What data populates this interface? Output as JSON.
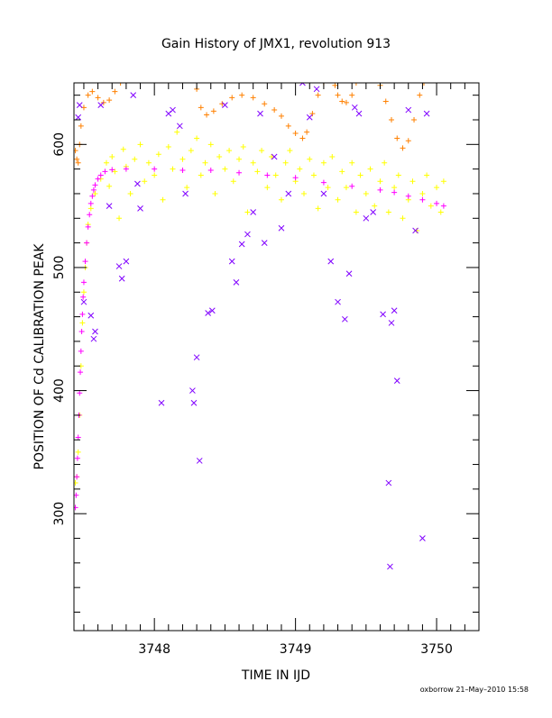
{
  "chart_data": {
    "type": "scatter",
    "title": "Gain History of JMX1, revolution 913",
    "xlabel": "TIME IN IJD",
    "ylabel": "POSITION OF Cd CALIBRATION PEAK",
    "footer": "oxborrow 21–May–2010 15:58",
    "xlim": [
      3747.43,
      3750.3
    ],
    "ylim": [
      205,
      650
    ],
    "x_tick_labels": [
      "3748",
      "3749",
      "3750"
    ],
    "y_tick_labels": [
      "300",
      "400",
      "500",
      "600"
    ],
    "x_major_ticks": [
      3748,
      3749,
      3750
    ],
    "y_major_ticks": [
      300,
      400,
      500,
      600
    ],
    "grid": false,
    "legend": "none",
    "series": [
      {
        "color": "#ffff00",
        "marker": "plus",
        "points": [
          [
            3747.44,
            325
          ],
          [
            3747.45,
            330
          ],
          [
            3747.46,
            350
          ],
          [
            3747.47,
            380
          ],
          [
            3747.48,
            420
          ],
          [
            3747.49,
            455
          ],
          [
            3747.5,
            480
          ],
          [
            3747.51,
            500
          ],
          [
            3747.52,
            520
          ],
          [
            3747.53,
            535
          ],
          [
            3747.55,
            548
          ],
          [
            3747.58,
            560
          ],
          [
            3747.62,
            572
          ],
          [
            3747.66,
            585
          ],
          [
            3747.68,
            566
          ],
          [
            3747.7,
            590
          ],
          [
            3747.72,
            578
          ],
          [
            3747.75,
            540
          ],
          [
            3747.78,
            596
          ],
          [
            3747.8,
            582
          ],
          [
            3747.83,
            560
          ],
          [
            3747.86,
            588
          ],
          [
            3747.9,
            600
          ],
          [
            3747.93,
            570
          ],
          [
            3747.96,
            585
          ],
          [
            3748.0,
            575
          ],
          [
            3748.03,
            592
          ],
          [
            3748.06,
            555
          ],
          [
            3748.1,
            598
          ],
          [
            3748.13,
            580
          ],
          [
            3748.16,
            610
          ],
          [
            3748.2,
            588
          ],
          [
            3748.23,
            565
          ],
          [
            3748.26,
            595
          ],
          [
            3748.3,
            605
          ],
          [
            3748.33,
            575
          ],
          [
            3748.36,
            585
          ],
          [
            3748.4,
            600
          ],
          [
            3748.43,
            560
          ],
          [
            3748.46,
            590
          ],
          [
            3748.5,
            580
          ],
          [
            3748.53,
            595
          ],
          [
            3748.56,
            570
          ],
          [
            3748.6,
            588
          ],
          [
            3748.63,
            598
          ],
          [
            3748.66,
            545
          ],
          [
            3748.7,
            585
          ],
          [
            3748.73,
            578
          ],
          [
            3748.76,
            595
          ],
          [
            3748.8,
            565
          ],
          [
            3748.83,
            590
          ],
          [
            3748.86,
            575
          ],
          [
            3748.9,
            555
          ],
          [
            3748.93,
            585
          ],
          [
            3748.96,
            595
          ],
          [
            3749.0,
            570
          ],
          [
            3749.03,
            580
          ],
          [
            3749.06,
            560
          ],
          [
            3749.1,
            588
          ],
          [
            3749.13,
            575
          ],
          [
            3749.16,
            548
          ],
          [
            3749.2,
            585
          ],
          [
            3749.23,
            565
          ],
          [
            3749.26,
            590
          ],
          [
            3749.3,
            555
          ],
          [
            3749.33,
            578
          ],
          [
            3749.36,
            565
          ],
          [
            3749.4,
            585
          ],
          [
            3749.43,
            545
          ],
          [
            3749.46,
            575
          ],
          [
            3749.5,
            560
          ],
          [
            3749.53,
            580
          ],
          [
            3749.56,
            550
          ],
          [
            3749.6,
            570
          ],
          [
            3749.63,
            585
          ],
          [
            3749.66,
            545
          ],
          [
            3749.7,
            565
          ],
          [
            3749.73,
            575
          ],
          [
            3749.76,
            540
          ],
          [
            3749.8,
            555
          ],
          [
            3749.83,
            570
          ],
          [
            3749.86,
            530
          ],
          [
            3749.9,
            560
          ],
          [
            3749.93,
            575
          ],
          [
            3749.96,
            550
          ],
          [
            3750.0,
            565
          ],
          [
            3750.03,
            545
          ],
          [
            3750.05,
            570
          ]
        ]
      },
      {
        "color": "#ff00ff",
        "marker": "plus",
        "points": [
          [
            3747.44,
            305
          ],
          [
            3747.445,
            315
          ],
          [
            3747.45,
            330
          ],
          [
            3747.455,
            345
          ],
          [
            3747.46,
            362
          ],
          [
            3747.465,
            380
          ],
          [
            3747.47,
            398
          ],
          [
            3747.475,
            415
          ],
          [
            3747.48,
            432
          ],
          [
            3747.485,
            448
          ],
          [
            3747.49,
            462
          ],
          [
            3747.495,
            476
          ],
          [
            3747.5,
            488
          ],
          [
            3747.51,
            505
          ],
          [
            3747.52,
            520
          ],
          [
            3747.53,
            533
          ],
          [
            3747.54,
            543
          ],
          [
            3747.55,
            552
          ],
          [
            3747.56,
            558
          ],
          [
            3747.57,
            563
          ],
          [
            3747.58,
            567
          ],
          [
            3747.6,
            572
          ],
          [
            3747.62,
            575
          ],
          [
            3747.65,
            578
          ],
          [
            3747.7,
            579.5
          ],
          [
            3747.8,
            580
          ],
          [
            3748.0,
            580
          ],
          [
            3748.2,
            579
          ],
          [
            3748.4,
            579
          ],
          [
            3748.6,
            577
          ],
          [
            3748.8,
            575
          ],
          [
            3749.0,
            573
          ],
          [
            3749.2,
            569
          ],
          [
            3749.4,
            566
          ],
          [
            3749.6,
            563
          ],
          [
            3749.7,
            561
          ],
          [
            3749.8,
            558
          ],
          [
            3749.9,
            555
          ],
          [
            3750.0,
            552
          ],
          [
            3750.05,
            550
          ]
        ]
      },
      {
        "color": "#ff8000",
        "marker": "plus",
        "points": [
          [
            3747.44,
            595
          ],
          [
            3747.45,
            588
          ],
          [
            3747.46,
            585
          ],
          [
            3747.47,
            600
          ],
          [
            3747.48,
            615
          ],
          [
            3747.5,
            630
          ],
          [
            3747.53,
            640
          ],
          [
            3747.56,
            643
          ],
          [
            3747.6,
            638
          ],
          [
            3747.64,
            634
          ],
          [
            3747.68,
            636
          ],
          [
            3747.72,
            643
          ],
          [
            3747.76,
            650
          ],
          [
            3748.3,
            645
          ],
          [
            3748.33,
            630
          ],
          [
            3748.37,
            624
          ],
          [
            3748.42,
            627
          ],
          [
            3748.48,
            633
          ],
          [
            3748.55,
            638
          ],
          [
            3748.62,
            640
          ],
          [
            3748.7,
            638
          ],
          [
            3748.78,
            633
          ],
          [
            3748.85,
            628
          ],
          [
            3748.9,
            623
          ],
          [
            3748.95,
            615
          ],
          [
            3749.0,
            609
          ],
          [
            3749.05,
            605
          ],
          [
            3749.08,
            610
          ],
          [
            3749.12,
            625
          ],
          [
            3749.16,
            640
          ],
          [
            3749.2,
            650
          ],
          [
            3749.28,
            648
          ],
          [
            3749.3,
            640
          ],
          [
            3749.33,
            635
          ],
          [
            3749.36,
            634
          ],
          [
            3749.4,
            640
          ],
          [
            3749.43,
            650
          ],
          [
            3749.6,
            648
          ],
          [
            3749.64,
            635
          ],
          [
            3749.68,
            620
          ],
          [
            3749.72,
            605
          ],
          [
            3749.76,
            597
          ],
          [
            3749.8,
            603
          ],
          [
            3749.84,
            620
          ],
          [
            3749.88,
            640
          ],
          [
            3749.91,
            650
          ]
        ]
      },
      {
        "color": "#8000ff",
        "marker": "x",
        "points": [
          [
            3747.46,
            622
          ],
          [
            3747.47,
            632
          ],
          [
            3747.5,
            472
          ],
          [
            3747.55,
            461
          ],
          [
            3747.57,
            442
          ],
          [
            3747.58,
            448
          ],
          [
            3747.62,
            632
          ],
          [
            3747.68,
            550
          ],
          [
            3747.75,
            501
          ],
          [
            3747.77,
            491
          ],
          [
            3747.8,
            505
          ],
          [
            3747.85,
            640
          ],
          [
            3747.88,
            568
          ],
          [
            3747.9,
            548
          ],
          [
            3748.05,
            390
          ],
          [
            3748.1,
            625
          ],
          [
            3748.13,
            628
          ],
          [
            3748.18,
            615
          ],
          [
            3748.22,
            560
          ],
          [
            3748.27,
            400
          ],
          [
            3748.28,
            390
          ],
          [
            3748.3,
            427
          ],
          [
            3748.32,
            343
          ],
          [
            3748.38,
            463
          ],
          [
            3748.41,
            465
          ],
          [
            3748.5,
            632
          ],
          [
            3748.55,
            505
          ],
          [
            3748.58,
            488
          ],
          [
            3748.62,
            519
          ],
          [
            3748.66,
            527
          ],
          [
            3748.7,
            545
          ],
          [
            3748.75,
            625
          ],
          [
            3748.78,
            520
          ],
          [
            3748.85,
            590
          ],
          [
            3748.9,
            532
          ],
          [
            3748.95,
            560
          ],
          [
            3749.05,
            650
          ],
          [
            3749.1,
            622
          ],
          [
            3749.15,
            645
          ],
          [
            3749.2,
            560
          ],
          [
            3749.25,
            505
          ],
          [
            3749.3,
            472
          ],
          [
            3749.35,
            458
          ],
          [
            3749.38,
            495
          ],
          [
            3749.42,
            630
          ],
          [
            3749.45,
            625
          ],
          [
            3749.5,
            540
          ],
          [
            3749.55,
            545
          ],
          [
            3749.62,
            462
          ],
          [
            3749.66,
            325
          ],
          [
            3749.67,
            257
          ],
          [
            3749.68,
            455
          ],
          [
            3749.7,
            465
          ],
          [
            3749.72,
            408
          ],
          [
            3749.8,
            628
          ],
          [
            3749.85,
            530
          ],
          [
            3749.9,
            280
          ],
          [
            3749.93,
            625
          ]
        ]
      }
    ]
  }
}
